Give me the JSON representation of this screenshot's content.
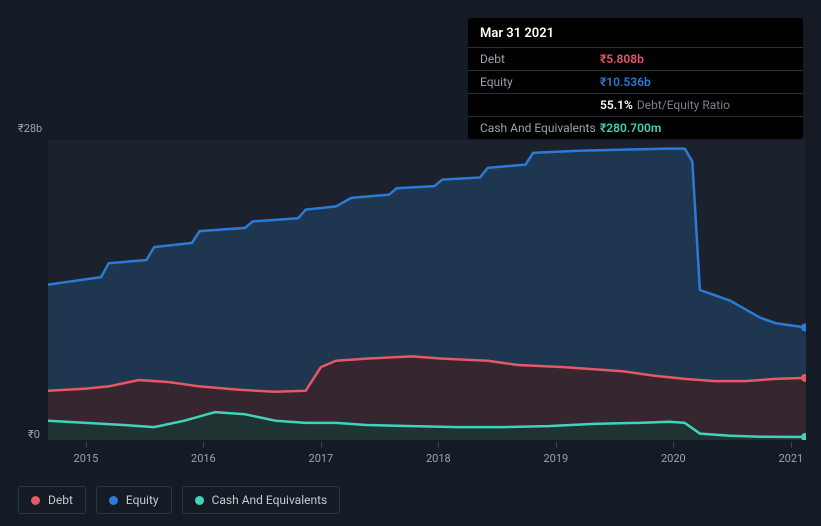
{
  "tooltip": {
    "date": "Mar 31 2021",
    "rows": {
      "debt_label": "Debt",
      "debt_value": "₹5.808b",
      "equity_label": "Equity",
      "equity_value": "₹10.536b",
      "ratio_value": "55.1%",
      "ratio_label": "Debt/Equity Ratio",
      "cash_label": "Cash And Equivalents",
      "cash_value": "₹280.700m"
    }
  },
  "chart": {
    "y_max_label": "₹28b",
    "y_min_label": "₹0",
    "y_max": 28,
    "y_min": 0,
    "x_labels": [
      "2015",
      "2016",
      "2017",
      "2018",
      "2019",
      "2020",
      "2021"
    ],
    "x_positions_pct": [
      5,
      20.5,
      36,
      51.5,
      67,
      82.5,
      98
    ],
    "background_color": "#1b222d",
    "series": {
      "equity": {
        "color_stroke": "#2a7bd6",
        "color_fill": "#1f3a56",
        "fill_opacity": 0.85,
        "stroke_width": 2.5,
        "data": [
          [
            0,
            14.5
          ],
          [
            3,
            14.8
          ],
          [
            5,
            15.0
          ],
          [
            7,
            15.2
          ],
          [
            8,
            16.5
          ],
          [
            13,
            16.8
          ],
          [
            14,
            18.0
          ],
          [
            19,
            18.4
          ],
          [
            20,
            19.5
          ],
          [
            26,
            19.8
          ],
          [
            27,
            20.4
          ],
          [
            33,
            20.7
          ],
          [
            34,
            21.5
          ],
          [
            38,
            21.8
          ],
          [
            40,
            22.6
          ],
          [
            45,
            22.9
          ],
          [
            46,
            23.5
          ],
          [
            51,
            23.7
          ],
          [
            52,
            24.3
          ],
          [
            57,
            24.5
          ],
          [
            58,
            25.4
          ],
          [
            63,
            25.7
          ],
          [
            64,
            26.8
          ],
          [
            70,
            27.0
          ],
          [
            76,
            27.1
          ],
          [
            82,
            27.2
          ],
          [
            84,
            27.2
          ],
          [
            85,
            26.0
          ],
          [
            86,
            14.0
          ],
          [
            88,
            13.5
          ],
          [
            90,
            13.0
          ],
          [
            92,
            12.2
          ],
          [
            94,
            11.4
          ],
          [
            96,
            10.9
          ],
          [
            98,
            10.7
          ],
          [
            100,
            10.5
          ]
        ]
      },
      "debt": {
        "color_stroke": "#e55865",
        "color_fill": "#3a232a",
        "fill_opacity": 0.85,
        "stroke_width": 2.5,
        "data": [
          [
            0,
            4.6
          ],
          [
            5,
            4.8
          ],
          [
            8,
            5.0
          ],
          [
            12,
            5.6
          ],
          [
            16,
            5.4
          ],
          [
            20,
            5.0
          ],
          [
            25,
            4.7
          ],
          [
            30,
            4.5
          ],
          [
            34,
            4.6
          ],
          [
            36,
            6.8
          ],
          [
            38,
            7.4
          ],
          [
            42,
            7.6
          ],
          [
            48,
            7.8
          ],
          [
            52,
            7.6
          ],
          [
            58,
            7.4
          ],
          [
            62,
            7.0
          ],
          [
            68,
            6.8
          ],
          [
            72,
            6.6
          ],
          [
            76,
            6.4
          ],
          [
            80,
            6.0
          ],
          [
            84,
            5.7
          ],
          [
            88,
            5.5
          ],
          [
            92,
            5.5
          ],
          [
            96,
            5.7
          ],
          [
            100,
            5.8
          ]
        ]
      },
      "cash": {
        "color_stroke": "#3fd4b9",
        "color_fill": "#1c3634",
        "fill_opacity": 0.85,
        "stroke_width": 2.5,
        "data": [
          [
            0,
            1.8
          ],
          [
            5,
            1.6
          ],
          [
            10,
            1.4
          ],
          [
            14,
            1.2
          ],
          [
            18,
            1.8
          ],
          [
            22,
            2.6
          ],
          [
            26,
            2.4
          ],
          [
            30,
            1.8
          ],
          [
            34,
            1.6
          ],
          [
            38,
            1.6
          ],
          [
            42,
            1.4
          ],
          [
            48,
            1.3
          ],
          [
            54,
            1.2
          ],
          [
            60,
            1.2
          ],
          [
            66,
            1.3
          ],
          [
            72,
            1.5
          ],
          [
            78,
            1.6
          ],
          [
            82,
            1.7
          ],
          [
            84,
            1.6
          ],
          [
            86,
            0.6
          ],
          [
            90,
            0.4
          ],
          [
            94,
            0.3
          ],
          [
            100,
            0.28
          ]
        ]
      }
    },
    "end_markers": {
      "equity": {
        "y": 10.5,
        "color": "#2a7bd6"
      },
      "debt": {
        "y": 5.8,
        "color": "#e55865"
      },
      "cash": {
        "y": 0.28,
        "color": "#3fd4b9"
      }
    }
  },
  "legend": {
    "items": [
      {
        "label": "Debt",
        "color": "#e55865"
      },
      {
        "label": "Equity",
        "color": "#2a7bd6"
      },
      {
        "label": "Cash And Equivalents",
        "color": "#3fd4b9"
      }
    ]
  },
  "colors": {
    "page_bg": "#151b24",
    "plot_bg": "#1b222d",
    "axis_text": "#9aa3af",
    "tick": "#3a4150"
  }
}
